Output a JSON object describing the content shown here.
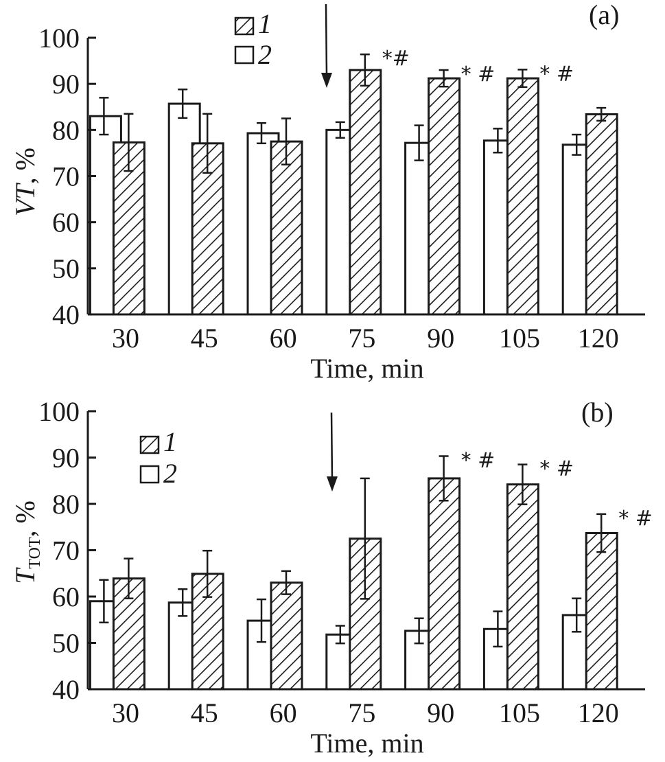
{
  "figure": {
    "panels_count": 2
  },
  "chart_data": [
    {
      "type": "bar",
      "panel_label": "(a)",
      "title": "",
      "xlabel": "Time, min",
      "ylabel_main": "VT",
      "ylabel_suffix": ", %",
      "ylabel_subscript": "",
      "categories": [
        "30",
        "45",
        "60",
        "75",
        "90",
        "105",
        "120"
      ],
      "ylim": [
        40,
        100
      ],
      "yticks": [
        40,
        50,
        60,
        70,
        80,
        90,
        100
      ],
      "grid": false,
      "legend_position": "top-center",
      "series": [
        {
          "name": "1",
          "pattern": "hatched",
          "order": 2,
          "values": [
            77.3,
            77.1,
            77.5,
            93.0,
            91.2,
            91.2,
            83.4
          ],
          "errors": [
            6.2,
            6.4,
            5.0,
            3.4,
            1.8,
            1.9,
            1.4
          ]
        },
        {
          "name": "2",
          "pattern": "open",
          "order": 1,
          "values": [
            83.0,
            85.7,
            79.3,
            80.0,
            77.2,
            77.7,
            76.8
          ],
          "errors": [
            4.0,
            3.1,
            2.2,
            1.7,
            3.8,
            2.6,
            2.2
          ]
        }
      ],
      "annotations": [
        {
          "category": "75",
          "series": "1",
          "text": "*#"
        },
        {
          "category": "90",
          "series": "1",
          "text": "* #"
        },
        {
          "category": "105",
          "series": "1",
          "text": "* #"
        }
      ],
      "arrow_between": [
        "60",
        "75"
      ]
    },
    {
      "type": "bar",
      "panel_label": "(b)",
      "title": "",
      "xlabel": "Time, min",
      "ylabel_main": "T",
      "ylabel_suffix": ", %",
      "ylabel_subscript": "TOT",
      "categories": [
        "30",
        "45",
        "60",
        "75",
        "90",
        "105",
        "120"
      ],
      "ylim": [
        40,
        100
      ],
      "yticks": [
        40,
        50,
        60,
        70,
        80,
        90,
        100
      ],
      "grid": false,
      "legend_position": "top-left",
      "series": [
        {
          "name": "1",
          "pattern": "hatched",
          "order": 2,
          "values": [
            63.9,
            64.9,
            63.0,
            72.5,
            85.5,
            84.2,
            73.7
          ],
          "errors": [
            4.3,
            5.0,
            2.5,
            13.0,
            4.8,
            4.3,
            4.1
          ]
        },
        {
          "name": "2",
          "pattern": "open",
          "order": 1,
          "values": [
            59.0,
            58.7,
            54.8,
            51.8,
            52.6,
            53.0,
            56.0
          ],
          "errors": [
            4.6,
            2.9,
            4.6,
            1.9,
            2.7,
            3.8,
            3.6
          ]
        }
      ],
      "annotations": [
        {
          "category": "90",
          "series": "1",
          "text": "* #"
        },
        {
          "category": "105",
          "series": "1",
          "text": "* #"
        },
        {
          "category": "120",
          "series": "1",
          "text": "* #"
        }
      ],
      "arrow_between": [
        "60",
        "75"
      ]
    }
  ],
  "colors": {
    "ink": "#1a1a1a",
    "background": "#ffffff"
  }
}
